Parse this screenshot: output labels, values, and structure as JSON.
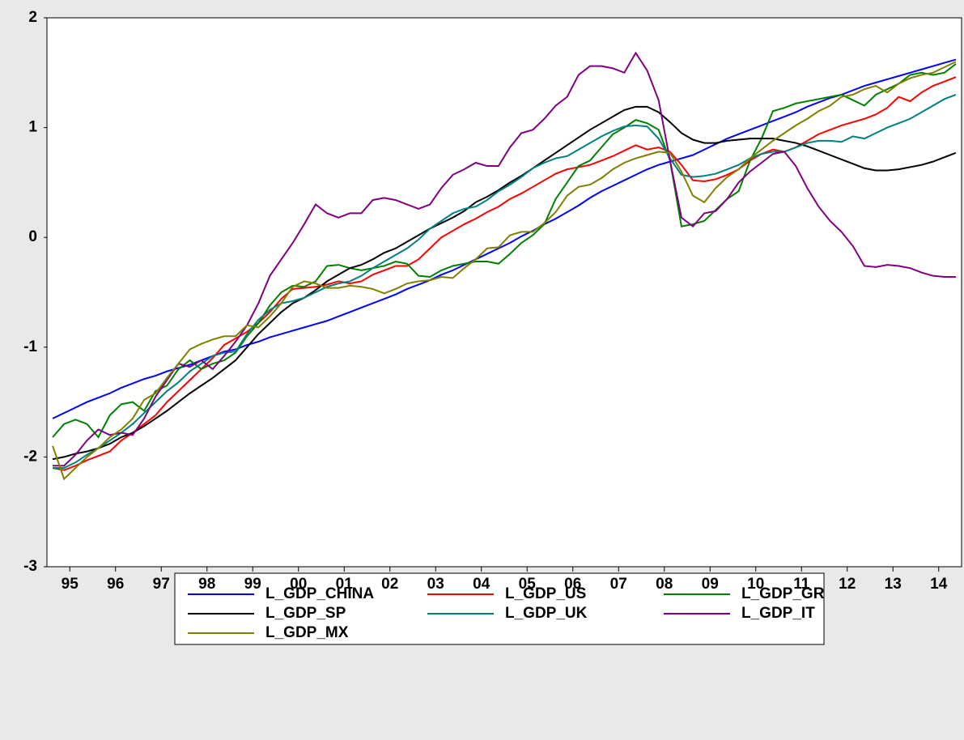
{
  "chart_data": {
    "type": "line",
    "x": [
      1995.125,
      1995.375,
      1995.625,
      1995.875,
      1996.125,
      1996.375,
      1996.625,
      1996.875,
      1997.125,
      1997.375,
      1997.625,
      1997.875,
      1998.125,
      1998.375,
      1998.625,
      1998.875,
      1999.125,
      1999.375,
      1999.625,
      1999.875,
      2000.125,
      2000.375,
      2000.625,
      2000.875,
      2001.125,
      2001.375,
      2001.625,
      2001.875,
      2002.125,
      2002.375,
      2002.625,
      2002.875,
      2003.125,
      2003.375,
      2003.625,
      2003.875,
      2004.125,
      2004.375,
      2004.625,
      2004.875,
      2005.125,
      2005.375,
      2005.625,
      2005.875,
      2006.125,
      2006.375,
      2006.625,
      2006.875,
      2007.125,
      2007.375,
      2007.625,
      2007.875,
      2008.125,
      2008.375,
      2008.625,
      2008.875,
      2009.125,
      2009.375,
      2009.625,
      2009.875,
      2010.125,
      2010.375,
      2010.625,
      2010.875,
      2011.125,
      2011.375,
      2011.625,
      2011.875,
      2012.125,
      2012.375,
      2012.625,
      2012.875,
      2013.125,
      2013.375,
      2013.625,
      2013.875,
      2014.125,
      2014.375,
      2014.625,
      2014.875
    ],
    "xlim": [
      1995,
      2015
    ],
    "xticks": [
      {
        "value": 1995.5,
        "label": "95"
      },
      {
        "value": 1996.5,
        "label": "96"
      },
      {
        "value": 1997.5,
        "label": "97"
      },
      {
        "value": 1998.5,
        "label": "98"
      },
      {
        "value": 1999.5,
        "label": "99"
      },
      {
        "value": 2000.5,
        "label": "00"
      },
      {
        "value": 2001.5,
        "label": "01"
      },
      {
        "value": 2002.5,
        "label": "02"
      },
      {
        "value": 2003.5,
        "label": "03"
      },
      {
        "value": 2004.5,
        "label": "04"
      },
      {
        "value": 2005.5,
        "label": "05"
      },
      {
        "value": 2006.5,
        "label": "06"
      },
      {
        "value": 2007.5,
        "label": "07"
      },
      {
        "value": 2008.5,
        "label": "08"
      },
      {
        "value": 2009.5,
        "label": "09"
      },
      {
        "value": 2010.5,
        "label": "10"
      },
      {
        "value": 2011.5,
        "label": "11"
      },
      {
        "value": 2012.5,
        "label": "12"
      },
      {
        "value": 2013.5,
        "label": "13"
      },
      {
        "value": 2014.5,
        "label": "14"
      }
    ],
    "ylim": [
      -3,
      2
    ],
    "yticks": [
      -3,
      -2,
      -1,
      0,
      1,
      2
    ],
    "grid": false,
    "series": [
      {
        "name": "L_GDP_CHINA",
        "color": "#0000ff",
        "values": [
          -1.65,
          -1.6,
          -1.55,
          -1.5,
          -1.46,
          -1.42,
          -1.37,
          -1.33,
          -1.29,
          -1.26,
          -1.22,
          -1.19,
          -1.16,
          -1.12,
          -1.08,
          -1.04,
          -1.02,
          -0.98,
          -0.95,
          -0.91,
          -0.88,
          -0.85,
          -0.82,
          -0.79,
          -0.76,
          -0.72,
          -0.68,
          -0.64,
          -0.6,
          -0.56,
          -0.52,
          -0.47,
          -0.43,
          -0.39,
          -0.34,
          -0.3,
          -0.25,
          -0.2,
          -0.15,
          -0.1,
          -0.05,
          0.01,
          0.06,
          0.12,
          0.17,
          0.23,
          0.29,
          0.36,
          0.42,
          0.47,
          0.52,
          0.57,
          0.62,
          0.66,
          0.69,
          0.72,
          0.75,
          0.8,
          0.85,
          0.9,
          0.94,
          0.98,
          1.02,
          1.06,
          1.1,
          1.14,
          1.19,
          1.23,
          1.27,
          1.3,
          1.34,
          1.38,
          1.41,
          1.44,
          1.47,
          1.5,
          1.53,
          1.56,
          1.59,
          1.62
        ]
      },
      {
        "name": "L_GDP_US",
        "color": "#ff0000",
        "values": [
          -2.1,
          -2.12,
          -2.08,
          -2.03,
          -1.99,
          -1.95,
          -1.85,
          -1.78,
          -1.7,
          -1.62,
          -1.5,
          -1.4,
          -1.3,
          -1.2,
          -1.1,
          -0.98,
          -0.92,
          -0.86,
          -0.78,
          -0.68,
          -0.56,
          -0.47,
          -0.46,
          -0.45,
          -0.43,
          -0.4,
          -0.42,
          -0.4,
          -0.34,
          -0.3,
          -0.26,
          -0.26,
          -0.2,
          -0.1,
          0.0,
          0.06,
          0.12,
          0.17,
          0.23,
          0.28,
          0.35,
          0.4,
          0.46,
          0.52,
          0.58,
          0.62,
          0.64,
          0.66,
          0.7,
          0.74,
          0.79,
          0.84,
          0.8,
          0.82,
          0.78,
          0.66,
          0.52,
          0.51,
          0.53,
          0.57,
          0.62,
          0.7,
          0.76,
          0.8,
          0.78,
          0.82,
          0.88,
          0.94,
          0.98,
          1.02,
          1.05,
          1.08,
          1.12,
          1.18,
          1.28,
          1.24,
          1.32,
          1.38,
          1.42,
          1.46
        ]
      },
      {
        "name": "L_GDP_GR",
        "color": "#008000",
        "values": [
          -1.82,
          -1.7,
          -1.66,
          -1.7,
          -1.82,
          -1.62,
          -1.52,
          -1.5,
          -1.58,
          -1.4,
          -1.35,
          -1.2,
          -1.12,
          -1.2,
          -1.15,
          -1.12,
          -1.05,
          -0.9,
          -0.78,
          -0.62,
          -0.5,
          -0.44,
          -0.45,
          -0.4,
          -0.26,
          -0.25,
          -0.28,
          -0.3,
          -0.28,
          -0.26,
          -0.22,
          -0.24,
          -0.35,
          -0.36,
          -0.3,
          -0.26,
          -0.24,
          -0.22,
          -0.22,
          -0.24,
          -0.15,
          -0.05,
          0.02,
          0.12,
          0.35,
          0.5,
          0.65,
          0.7,
          0.82,
          0.94,
          1.0,
          1.07,
          1.04,
          0.98,
          0.7,
          0.1,
          0.12,
          0.15,
          0.25,
          0.35,
          0.42,
          0.7,
          0.9,
          1.15,
          1.18,
          1.22,
          1.24,
          1.26,
          1.28,
          1.3,
          1.25,
          1.2,
          1.3,
          1.35,
          1.4,
          1.48,
          1.5,
          1.48,
          1.5,
          1.58
        ]
      },
      {
        "name": "L_GDP_SP",
        "color": "#000000",
        "values": [
          -2.02,
          -2.0,
          -1.97,
          -1.95,
          -1.92,
          -1.88,
          -1.82,
          -1.78,
          -1.72,
          -1.65,
          -1.58,
          -1.5,
          -1.42,
          -1.35,
          -1.28,
          -1.2,
          -1.12,
          -1.0,
          -0.88,
          -0.78,
          -0.68,
          -0.6,
          -0.55,
          -0.48,
          -0.4,
          -0.34,
          -0.28,
          -0.25,
          -0.2,
          -0.14,
          -0.1,
          -0.04,
          0.02,
          0.08,
          0.13,
          0.18,
          0.24,
          0.32,
          0.37,
          0.43,
          0.5,
          0.56,
          0.63,
          0.7,
          0.77,
          0.84,
          0.91,
          0.98,
          1.04,
          1.1,
          1.16,
          1.19,
          1.19,
          1.14,
          1.05,
          0.95,
          0.89,
          0.86,
          0.86,
          0.88,
          0.89,
          0.9,
          0.9,
          0.9,
          0.88,
          0.86,
          0.83,
          0.79,
          0.75,
          0.71,
          0.67,
          0.63,
          0.61,
          0.61,
          0.62,
          0.64,
          0.66,
          0.69,
          0.73,
          0.77
        ]
      },
      {
        "name": "L_GDP_UK",
        "color": "#008080",
        "values": [
          -2.1,
          -2.1,
          -2.05,
          -1.98,
          -1.92,
          -1.85,
          -1.78,
          -1.7,
          -1.6,
          -1.5,
          -1.4,
          -1.32,
          -1.22,
          -1.15,
          -1.08,
          -1.05,
          -1.04,
          -0.88,
          -0.75,
          -0.66,
          -0.6,
          -0.58,
          -0.55,
          -0.5,
          -0.45,
          -0.42,
          -0.4,
          -0.35,
          -0.28,
          -0.22,
          -0.16,
          -0.1,
          -0.02,
          0.08,
          0.15,
          0.22,
          0.26,
          0.28,
          0.34,
          0.42,
          0.48,
          0.55,
          0.63,
          0.68,
          0.72,
          0.74,
          0.8,
          0.86,
          0.92,
          0.97,
          1.01,
          1.02,
          1.01,
          0.9,
          0.72,
          0.57,
          0.55,
          0.56,
          0.58,
          0.62,
          0.66,
          0.72,
          0.76,
          0.78,
          0.78,
          0.82,
          0.86,
          0.88,
          0.88,
          0.87,
          0.92,
          0.9,
          0.95,
          1.0,
          1.04,
          1.08,
          1.14,
          1.2,
          1.26,
          1.3
        ]
      },
      {
        "name": "L_GDP_IT",
        "color": "#800080",
        "values": [
          -2.08,
          -2.08,
          -1.98,
          -1.85,
          -1.75,
          -1.8,
          -1.78,
          -1.8,
          -1.65,
          -1.45,
          -1.3,
          -1.15,
          -1.18,
          -1.12,
          -1.2,
          -1.08,
          -0.95,
          -0.8,
          -0.6,
          -0.35,
          -0.2,
          -0.05,
          0.12,
          0.3,
          0.22,
          0.18,
          0.22,
          0.22,
          0.34,
          0.36,
          0.34,
          0.3,
          0.26,
          0.3,
          0.45,
          0.57,
          0.62,
          0.68,
          0.65,
          0.65,
          0.82,
          0.95,
          0.98,
          1.08,
          1.2,
          1.28,
          1.48,
          1.56,
          1.56,
          1.54,
          1.5,
          1.68,
          1.52,
          1.25,
          0.7,
          0.18,
          0.1,
          0.22,
          0.24,
          0.35,
          0.5,
          0.6,
          0.68,
          0.76,
          0.78,
          0.65,
          0.45,
          0.28,
          0.15,
          0.05,
          -0.08,
          -0.26,
          -0.27,
          -0.25,
          -0.26,
          -0.28,
          -0.32,
          -0.35,
          -0.36,
          -0.36
        ]
      },
      {
        "name": "L_GDP_MX",
        "color": "#808000",
        "values": [
          -1.9,
          -2.2,
          -2.1,
          -2.0,
          -1.92,
          -1.82,
          -1.75,
          -1.65,
          -1.48,
          -1.42,
          -1.28,
          -1.15,
          -1.02,
          -0.97,
          -0.93,
          -0.9,
          -0.9,
          -0.8,
          -0.82,
          -0.72,
          -0.6,
          -0.45,
          -0.4,
          -0.42,
          -0.46,
          -0.46,
          -0.44,
          -0.45,
          -0.47,
          -0.51,
          -0.47,
          -0.42,
          -0.4,
          -0.39,
          -0.36,
          -0.37,
          -0.28,
          -0.2,
          -0.1,
          -0.09,
          0.02,
          0.05,
          0.05,
          0.13,
          0.23,
          0.38,
          0.46,
          0.48,
          0.54,
          0.62,
          0.68,
          0.72,
          0.75,
          0.78,
          0.77,
          0.6,
          0.38,
          0.32,
          0.45,
          0.55,
          0.62,
          0.72,
          0.8,
          0.88,
          0.95,
          1.02,
          1.08,
          1.15,
          1.2,
          1.28,
          1.3,
          1.35,
          1.38,
          1.32,
          1.4,
          1.45,
          1.48,
          1.5,
          1.55,
          1.6
        ]
      }
    ]
  }
}
